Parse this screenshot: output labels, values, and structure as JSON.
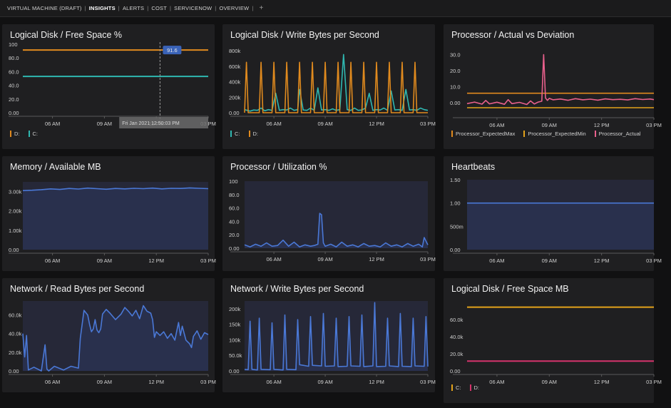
{
  "nav": {
    "items": [
      {
        "label": "VIRTUAL MACHINE (DRAFT)",
        "active": false
      },
      {
        "label": "INSIGHTS",
        "active": true
      },
      {
        "label": "ALERTS",
        "active": false
      },
      {
        "label": "COST",
        "active": false
      },
      {
        "label": "SERVICENOW",
        "active": false
      },
      {
        "label": "OVERVIEW",
        "active": false
      }
    ],
    "separator": "|",
    "add_label": "+"
  },
  "tiles": [
    {
      "title": "Logical Disk / Free Space %",
      "legend": [
        {
          "label": "D:",
          "color": "#e08a1e"
        },
        {
          "label": "C:",
          "color": "#2fb7b0"
        }
      ]
    },
    {
      "title": "Logical Disk / Write Bytes per Second",
      "legend": [
        {
          "label": "C:",
          "color": "#2fb7b0"
        },
        {
          "label": "D:",
          "color": "#e08a1e"
        }
      ]
    },
    {
      "title": "Processor / Actual vs Deviation",
      "legend": [
        {
          "label": "Processor_ExpectedMax",
          "color": "#e08a1e"
        },
        {
          "label": "Processor_ExpectedMin",
          "color": "#e3a21a"
        },
        {
          "label": "Processor_Actual",
          "color": "#e8608c"
        }
      ]
    },
    {
      "title": "Memory / Available MB",
      "legend": []
    },
    {
      "title": "Processor / Utilization %",
      "legend": []
    },
    {
      "title": "Heartbeats",
      "legend": []
    },
    {
      "title": "Network / Read Bytes per Second",
      "legend": []
    },
    {
      "title": "Network / Write Bytes per Second",
      "legend": []
    },
    {
      "title": "Logical Disk / Free Space MB",
      "legend": [
        {
          "label": "C:",
          "color": "#e3a21a"
        },
        {
          "label": "D:",
          "color": "#d6336c"
        }
      ]
    }
  ],
  "colors": {
    "orange": "#e08a1e",
    "amber": "#e3a21a",
    "teal": "#2fb7b0",
    "blue": "#4a78d6",
    "pink": "#e8608c",
    "crimson": "#d6336c",
    "text": "#d0d0d0",
    "tile_bg": "#1f1f21",
    "plot_fill": "#27293a"
  },
  "chart_data": [
    {
      "type": "line",
      "title": "Logical Disk / Free Space %",
      "yticks": [
        "100",
        "80.0",
        "60.0",
        "40.0",
        "20.0",
        "0.00"
      ],
      "ylim": [
        0,
        100
      ],
      "xticks": [
        "06 AM",
        "09 AM",
        "12 PM",
        "03 PM"
      ],
      "tooltip": {
        "value": "91.6",
        "time": "Fri Jan 2021 12:50:03 PM"
      },
      "series": [
        {
          "name": "D:",
          "color": "#e08a1e",
          "x": [
            0,
            100
          ],
          "values": [
            91.6,
            91.6
          ]
        },
        {
          "name": "C:",
          "color": "#2fb7b0",
          "x": [
            0,
            100
          ],
          "values": [
            53,
            53
          ]
        }
      ]
    },
    {
      "type": "line",
      "title": "Logical Disk / Write Bytes per Second",
      "yticks": [
        "800k",
        "600k",
        "400k",
        "200k",
        "0.00"
      ],
      "ylim": [
        0,
        800000
      ],
      "xticks": [
        "06 AM",
        "09 AM",
        "12 PM",
        "03 PM"
      ],
      "series": [
        {
          "name": "C:",
          "color": "#2fb7b0",
          "x": [
            0,
            3,
            5,
            7,
            9,
            11,
            13,
            15,
            17,
            19,
            21,
            23,
            25,
            27,
            29,
            30,
            32,
            34,
            36,
            38,
            40,
            42,
            44,
            46,
            48,
            50,
            52,
            54,
            56,
            58,
            60,
            62,
            64,
            66,
            68,
            70,
            72,
            74,
            76,
            78,
            80,
            82,
            84,
            86,
            88,
            90,
            92,
            94,
            96,
            98,
            100
          ],
          "values": [
            40000,
            20000,
            35000,
            30000,
            60000,
            25000,
            40000,
            30000,
            250000,
            30000,
            40000,
            35000,
            60000,
            30000,
            40000,
            300000,
            35000,
            30000,
            60000,
            30000,
            320000,
            35000,
            40000,
            30000,
            50000,
            30000,
            40000,
            750000,
            40000,
            30000,
            60000,
            30000,
            35000,
            60000,
            250000,
            30000,
            40000,
            35000,
            60000,
            30000,
            280000,
            35000,
            40000,
            30000,
            300000,
            35000,
            40000,
            30000,
            60000,
            40000,
            30000
          ]
        },
        {
          "name": "D:",
          "color": "#e08a1e",
          "x": [
            0,
            1,
            2,
            3,
            8,
            9,
            10,
            15,
            16,
            17,
            22,
            23,
            24,
            29,
            30,
            31,
            36,
            37,
            38,
            43,
            44,
            45,
            50,
            51,
            52,
            57,
            58,
            59,
            64,
            65,
            66,
            71,
            72,
            73,
            78,
            79,
            80,
            85,
            86,
            87,
            92,
            93,
            94,
            100
          ],
          "values": [
            0,
            650000,
            0,
            0,
            0,
            650000,
            0,
            0,
            650000,
            0,
            0,
            650000,
            0,
            0,
            650000,
            0,
            0,
            650000,
            0,
            0,
            650000,
            0,
            0,
            650000,
            0,
            0,
            650000,
            0,
            0,
            650000,
            0,
            0,
            650000,
            0,
            0,
            650000,
            0,
            0,
            650000,
            0,
            0,
            650000,
            0,
            0
          ]
        }
      ]
    },
    {
      "type": "line",
      "title": "Processor / Actual vs Deviation",
      "yticks": [
        "30.0",
        "20.0",
        "10.0",
        "0.00"
      ],
      "ylim": [
        -7,
        32
      ],
      "xticks": [
        "06 AM",
        "09 AM",
        "12 PM",
        "03 PM"
      ],
      "series": [
        {
          "name": "Processor_ExpectedMax",
          "color": "#e08a1e",
          "x": [
            0,
            100
          ],
          "values": [
            6.0,
            6.0
          ]
        },
        {
          "name": "Processor_ExpectedMin",
          "color": "#e3a21a",
          "x": [
            0,
            100
          ],
          "values": [
            -3.0,
            -3.0
          ]
        },
        {
          "name": "Processor_Actual",
          "color": "#e8608c",
          "x": [
            0,
            4,
            8,
            10,
            12,
            16,
            20,
            22,
            24,
            28,
            32,
            34,
            36,
            38,
            40,
            41,
            42,
            43,
            44,
            46,
            50,
            54,
            58,
            62,
            66,
            70,
            74,
            78,
            82,
            86,
            90,
            94,
            98,
            100
          ],
          "values": [
            -0.5,
            0.5,
            -0.8,
            1.5,
            -0.6,
            0.4,
            -0.9,
            2.0,
            -0.5,
            0.3,
            -1.0,
            1.2,
            -0.7,
            0.5,
            1.0,
            30.0,
            3.0,
            1.5,
            2.8,
            1.9,
            2.4,
            1.6,
            2.6,
            1.9,
            2.3,
            1.7,
            2.5,
            2.0,
            2.2,
            1.8,
            2.6,
            2.1,
            2.4,
            2.0
          ]
        }
      ]
    },
    {
      "type": "area",
      "title": "Memory / Available MB",
      "yticks": [
        "3.00k",
        "2.00k",
        "1.00k",
        "0.00"
      ],
      "ylim": [
        0,
        3500
      ],
      "xticks": [
        "06 AM",
        "09 AM",
        "12 PM",
        "03 PM"
      ],
      "series": [
        {
          "name": "",
          "color": "#4a78d6",
          "x": [
            0,
            5,
            10,
            15,
            20,
            25,
            30,
            35,
            40,
            45,
            50,
            55,
            60,
            65,
            70,
            75,
            80,
            85,
            90,
            95,
            100
          ],
          "values": [
            3050,
            3070,
            3100,
            3140,
            3110,
            3160,
            3130,
            3180,
            3150,
            3120,
            3160,
            3140,
            3170,
            3150,
            3180,
            3140,
            3170,
            3160,
            3190,
            3170,
            3150
          ]
        }
      ]
    },
    {
      "type": "area",
      "title": "Processor / Utilization %",
      "yticks": [
        "100",
        "80.0",
        "60.0",
        "40.0",
        "20.0",
        "0.00"
      ],
      "ylim": [
        0,
        100
      ],
      "xticks": [
        "06 AM",
        "09 AM",
        "12 PM",
        "03 PM"
      ],
      "series": [
        {
          "name": "",
          "color": "#4a78d6",
          "x": [
            0,
            3,
            6,
            9,
            12,
            15,
            18,
            21,
            24,
            27,
            30,
            33,
            36,
            38,
            40,
            41,
            42,
            43,
            44,
            47,
            50,
            53,
            56,
            59,
            62,
            65,
            68,
            71,
            74,
            77,
            80,
            83,
            86,
            89,
            92,
            95,
            97,
            98,
            100
          ],
          "values": [
            5,
            2,
            6,
            3,
            8,
            3,
            4,
            12,
            3,
            9,
            2,
            5,
            3,
            4,
            6,
            52,
            50,
            8,
            3,
            6,
            2,
            9,
            3,
            5,
            2,
            7,
            3,
            4,
            2,
            8,
            3,
            5,
            2,
            7,
            3,
            6,
            2,
            16,
            5
          ]
        }
      ]
    },
    {
      "type": "area",
      "title": "Heartbeats",
      "yticks": [
        "1.50",
        "1.00",
        "500m",
        "0.00"
      ],
      "ylim": [
        0,
        1.5
      ],
      "xticks": [
        "06 AM",
        "09 AM",
        "12 PM",
        "03 PM"
      ],
      "series": [
        {
          "name": "",
          "color": "#4a78d6",
          "x": [
            0,
            100
          ],
          "values": [
            1.0,
            1.0
          ]
        }
      ]
    },
    {
      "type": "area",
      "title": "Network / Read Bytes per Second",
      "yticks": [
        "60.0k",
        "40.0k",
        "20.0k",
        "0.00"
      ],
      "ylim": [
        0,
        75000
      ],
      "xticks": [
        "06 AM",
        "09 AM",
        "12 PM",
        "03 PM"
      ],
      "series": [
        {
          "name": "",
          "color": "#4a78d6",
          "x": [
            0,
            1,
            2,
            3,
            6,
            10,
            12,
            13,
            14,
            17,
            22,
            26,
            30,
            31,
            33,
            35,
            36,
            37,
            38,
            39,
            40,
            41,
            42,
            43,
            45,
            47,
            50,
            53,
            55,
            57,
            59,
            61,
            63,
            65,
            67,
            69,
            70,
            71,
            72,
            74,
            76,
            78,
            80,
            82,
            84,
            85,
            86,
            88,
            90,
            91,
            92,
            94,
            96,
            98,
            100
          ],
          "values": [
            40000,
            15000,
            38000,
            1000,
            4000,
            0,
            28000,
            2000,
            0,
            5000,
            1000,
            5000,
            3000,
            35000,
            65000,
            60000,
            50000,
            42000,
            45000,
            55000,
            44000,
            41000,
            45000,
            61000,
            66000,
            62000,
            55000,
            61000,
            68000,
            64000,
            59000,
            65000,
            56000,
            70000,
            64000,
            62000,
            55000,
            36000,
            42000,
            38000,
            42000,
            35000,
            40000,
            33000,
            52000,
            38000,
            48000,
            33000,
            29000,
            25000,
            37000,
            43000,
            34000,
            41000,
            39000
          ]
        }
      ]
    },
    {
      "type": "area",
      "title": "Network / Write Bytes per Second",
      "yticks": [
        "200k",
        "150k",
        "100k",
        "50.0k",
        "0.00"
      ],
      "ylim": [
        0,
        225000
      ],
      "xticks": [
        "06 AM",
        "09 AM",
        "12 PM",
        "03 PM"
      ],
      "series": [
        {
          "name": "",
          "color": "#4a78d6",
          "x": [
            0,
            2,
            3,
            4,
            7,
            8,
            9,
            14,
            15,
            16,
            21,
            22,
            23,
            28,
            29,
            30,
            35,
            36,
            37,
            42,
            43,
            44,
            49,
            50,
            51,
            56,
            57,
            58,
            63,
            64,
            65,
            70,
            71,
            72,
            77,
            78,
            79,
            84,
            85,
            86,
            91,
            92,
            93,
            98,
            99,
            100
          ],
          "values": [
            5000,
            4000,
            160000,
            5000,
            3000,
            170000,
            5000,
            4000,
            155000,
            5000,
            3000,
            180000,
            5000,
            4000,
            165000,
            20000,
            15000,
            175000,
            18000,
            16000,
            185000,
            15000,
            16000,
            170000,
            14000,
            15000,
            175000,
            16000,
            15000,
            180000,
            14000,
            16000,
            220000,
            14000,
            15000,
            170000,
            16000,
            14000,
            185000,
            15000,
            14000,
            170000,
            16000,
            15000,
            175000,
            14000
          ]
        }
      ]
    },
    {
      "type": "line",
      "title": "Logical Disk / Free Space MB",
      "yticks": [
        "60.0k",
        "40.0k",
        "20.0k",
        "0.00"
      ],
      "ylim": [
        0,
        80000
      ],
      "xticks": [
        "06 AM",
        "09 AM",
        "12 PM",
        "03 PM"
      ],
      "series": [
        {
          "name": "C:",
          "color": "#e3a21a",
          "x": [
            0,
            100
          ],
          "values": [
            74500,
            74500
          ]
        },
        {
          "name": "D:",
          "color": "#d6336c",
          "x": [
            0,
            100
          ],
          "values": [
            11500,
            11500
          ]
        }
      ]
    }
  ]
}
